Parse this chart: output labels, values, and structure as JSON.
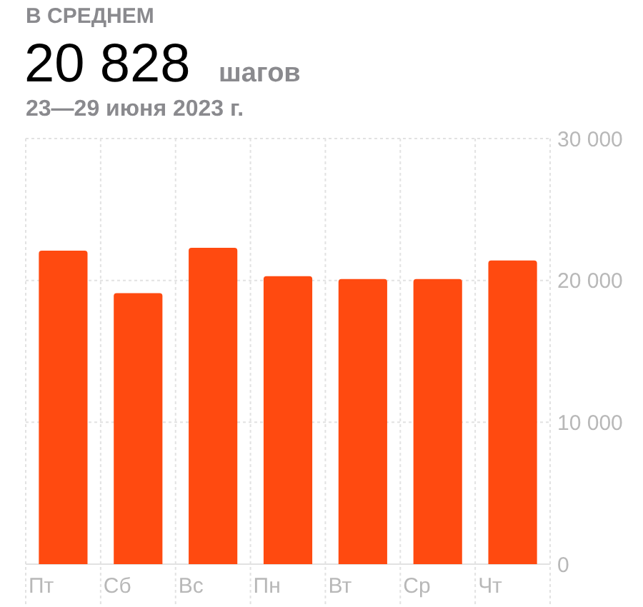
{
  "chart_data": {
    "type": "bar",
    "title": "В СРЕДНЕМ",
    "subtitle": "23—29 июня 2023 г.",
    "annotations": [
      "20 828",
      "шагов"
    ],
    "categories": [
      "Пт",
      "Сб",
      "Вс",
      "Пн",
      "Вт",
      "Ср",
      "Чт"
    ],
    "values": [
      22100,
      19100,
      22300,
      20300,
      20100,
      20100,
      21400
    ],
    "color": "#ff4a10",
    "ylim": [
      0,
      30000
    ],
    "yticks": [
      {
        "value": 0,
        "label": "0"
      },
      {
        "value": 10000,
        "label": "10 000"
      },
      {
        "value": 20000,
        "label": "20 000"
      },
      {
        "value": 30000,
        "label": "30 000"
      }
    ],
    "grid": true
  }
}
